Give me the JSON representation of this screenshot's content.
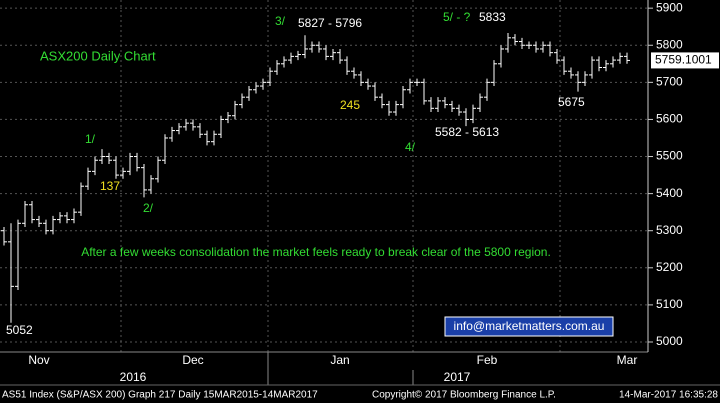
{
  "chart_data": {
    "type": "ohlc",
    "title": "ASX200 Daily Chart",
    "categories": [
      null,
      null,
      null,
      null,
      null,
      "Nov",
      null,
      null,
      null,
      null,
      null,
      null,
      null,
      null,
      null,
      null,
      null,
      null,
      null,
      null,
      null,
      null,
      null,
      null,
      null,
      null,
      null,
      "Dec",
      null,
      null,
      null,
      null,
      null,
      null,
      null,
      null,
      null,
      null,
      null,
      null,
      null,
      null,
      null,
      null,
      null,
      null,
      null,
      null,
      "Jan",
      null,
      null,
      null,
      null,
      null,
      null,
      null,
      null,
      null,
      null,
      null,
      null,
      null,
      null,
      null,
      null,
      null,
      null,
      null,
      null,
      "Feb",
      null,
      null,
      null,
      null,
      null,
      null,
      null,
      null,
      null,
      null,
      null,
      null,
      null,
      null,
      null,
      null,
      null,
      null,
      null,
      "Mar"
    ],
    "years": [
      "2016",
      "2017"
    ],
    "open": [
      5300,
      5270,
      5150,
      5320,
      5370,
      5330,
      5320,
      5300,
      5330,
      5340,
      5330,
      5350,
      5420,
      5460,
      5490,
      5500,
      5490,
      5450,
      5460,
      5500,
      5470,
      5410,
      5440,
      5490,
      5550,
      5570,
      5580,
      5590,
      5580,
      5560,
      5540,
      5560,
      5600,
      5610,
      5640,
      5660,
      5680,
      5690,
      5700,
      5730,
      5750,
      5760,
      5770,
      5775,
      5790,
      5800,
      5790,
      5770,
      5780,
      5760,
      5730,
      5720,
      5700,
      5690,
      5660,
      5640,
      5620,
      5640,
      5680,
      5700,
      5700,
      5650,
      5630,
      5650,
      5640,
      5630,
      5620,
      5600,
      5630,
      5660,
      5700,
      5750,
      5790,
      5820,
      5810,
      5800,
      5800,
      5790,
      5800,
      5780,
      5760,
      5730,
      5720,
      5700,
      5720,
      5760,
      5740,
      5750,
      5760,
      5770
    ],
    "high": [
      5310,
      5320,
      5330,
      5380,
      5380,
      5340,
      5330,
      5340,
      5350,
      5350,
      5360,
      5430,
      5470,
      5500,
      5520,
      5510,
      5500,
      5470,
      5510,
      5510,
      5480,
      5450,
      5500,
      5560,
      5580,
      5590,
      5600,
      5600,
      5590,
      5570,
      5570,
      5610,
      5620,
      5650,
      5670,
      5690,
      5700,
      5710,
      5740,
      5760,
      5770,
      5780,
      5785,
      5827,
      5810,
      5810,
      5800,
      5790,
      5790,
      5770,
      5740,
      5730,
      5710,
      5700,
      5670,
      5650,
      5650,
      5690,
      5710,
      5710,
      5710,
      5660,
      5660,
      5660,
      5650,
      5640,
      5630,
      5640,
      5670,
      5710,
      5760,
      5800,
      5833,
      5830,
      5820,
      5810,
      5810,
      5810,
      5810,
      5790,
      5770,
      5740,
      5730,
      5730,
      5770,
      5770,
      5760,
      5770,
      5780,
      5780
    ],
    "low": [
      5260,
      5052,
      5140,
      5310,
      5320,
      5310,
      5290,
      5290,
      5320,
      5320,
      5320,
      5340,
      5410,
      5450,
      5480,
      5480,
      5440,
      5440,
      5450,
      5460,
      5390,
      5400,
      5430,
      5480,
      5540,
      5560,
      5570,
      5570,
      5550,
      5530,
      5530,
      5550,
      5590,
      5600,
      5630,
      5650,
      5670,
      5680,
      5690,
      5720,
      5740,
      5750,
      5760,
      5765,
      5780,
      5780,
      5760,
      5760,
      5750,
      5720,
      5710,
      5690,
      5680,
      5650,
      5630,
      5610,
      5610,
      5630,
      5670,
      5690,
      5640,
      5620,
      5620,
      5630,
      5620,
      5610,
      5582,
      5590,
      5620,
      5650,
      5690,
      5740,
      5780,
      5800,
      5790,
      5790,
      5780,
      5780,
      5770,
      5750,
      5720,
      5710,
      5675,
      5690,
      5710,
      5730,
      5730,
      5740,
      5750,
      5750
    ],
    "close": [
      5270,
      5150,
      5320,
      5370,
      5330,
      5320,
      5300,
      5330,
      5340,
      5330,
      5350,
      5420,
      5460,
      5490,
      5500,
      5490,
      5450,
      5460,
      5500,
      5470,
      5410,
      5440,
      5490,
      5550,
      5570,
      5580,
      5590,
      5580,
      5560,
      5540,
      5560,
      5600,
      5610,
      5640,
      5660,
      5680,
      5690,
      5700,
      5730,
      5750,
      5760,
      5770,
      5775,
      5790,
      5800,
      5790,
      5770,
      5780,
      5760,
      5730,
      5720,
      5700,
      5690,
      5660,
      5640,
      5620,
      5640,
      5680,
      5700,
      5700,
      5650,
      5630,
      5650,
      5640,
      5630,
      5620,
      5600,
      5630,
      5660,
      5700,
      5750,
      5790,
      5820,
      5810,
      5800,
      5800,
      5790,
      5800,
      5780,
      5760,
      5730,
      5720,
      5700,
      5720,
      5760,
      5740,
      5750,
      5760,
      5770,
      5759.1001
    ],
    "color": "#ffffff",
    "ylim": [
      4973,
      5922
    ],
    "yticks": [
      5000,
      5100,
      5200,
      5300,
      5400,
      5500,
      5600,
      5700,
      5800,
      5900
    ],
    "grid": true,
    "annotations": [
      {
        "text": "3/",
        "color": "#33dd33"
      },
      {
        "text": "5827 - 5796",
        "color": "#ffffff"
      },
      {
        "text": "5/ - ?",
        "color": "#33dd33"
      },
      {
        "text": "5833",
        "color": "#ffffff"
      },
      {
        "text": "245",
        "color": "#f0e020"
      },
      {
        "text": "5582 - 5613",
        "color": "#ffffff"
      },
      {
        "text": "4/",
        "color": "#33dd33"
      },
      {
        "text": "5675",
        "color": "#ffffff"
      },
      {
        "text": "1/",
        "color": "#33dd33"
      },
      {
        "text": "137",
        "color": "#f0e020"
      },
      {
        "text": "2/",
        "color": "#33dd33"
      },
      {
        "text": "5052",
        "color": "#ffffff"
      },
      {
        "text": "After a few weeks consolidation the market feels ready to break clear of the 5800 region.",
        "color": "#33dd33"
      }
    ],
    "contact": "info@marketmatters.com.au",
    "footer": [
      "AS51 Index (S&P/ASX 200) Graph 217  Daily 15MAR2015-14MAR2017",
      "Copyright© 2017 Bloomberg Finance L.P.",
      "14-Mar-2017 16:35:28"
    ]
  }
}
